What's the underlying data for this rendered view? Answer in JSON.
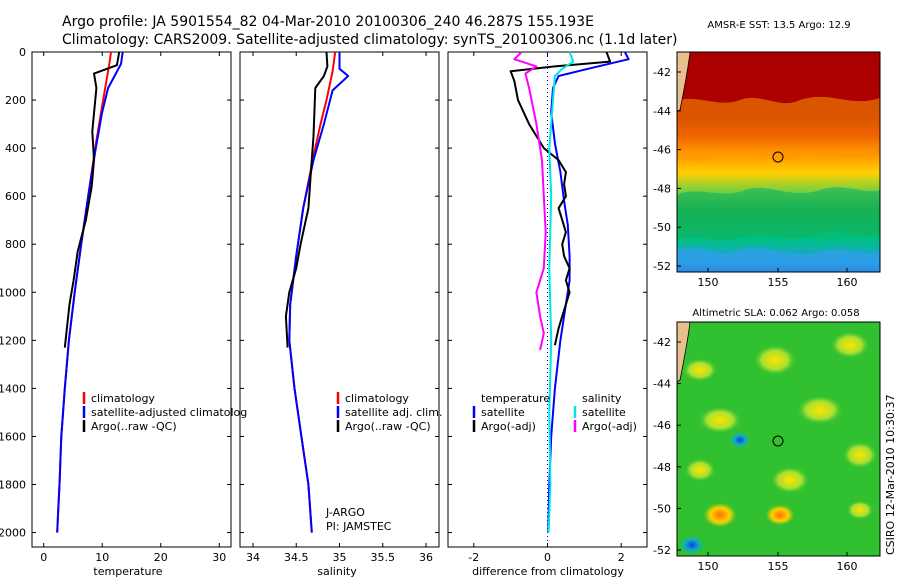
{
  "header": {
    "line1": "Argo profile: JA 5901554_82 04-Mar-2010 20100306_240 46.287S 155.193E",
    "line2": "Climatology: CARS2009. Satellite-adjusted climatology: synTS_20100306.nc (1.1d later)"
  },
  "colors": {
    "climatology": "#ff0000",
    "satellite": "#0000ff",
    "argo": "#000000",
    "argo_adj_sal": "#ff00ff",
    "sat_sal": "#00e5e5"
  },
  "depth_ticks": [
    0,
    200,
    400,
    600,
    800,
    1000,
    1200,
    1400,
    1600,
    1800,
    2000
  ],
  "panels": {
    "temperature": {
      "xlabel": "temperature",
      "xticks": [
        0,
        10,
        20,
        30
      ],
      "legend": [
        "climatology",
        "satellite-adjusted climatolog",
        "Argo(..raw -QC)"
      ]
    },
    "salinity": {
      "xlabel": "salinity",
      "xticks": [
        "34",
        "34.5",
        "35",
        "35.5",
        "36"
      ],
      "legend": [
        "climatology",
        "satellite adj. clim.",
        "Argo(..raw -QC)"
      ],
      "annotation": [
        "J-ARGO",
        "PI: JAMSTEC"
      ]
    },
    "difference": {
      "xlabel": "difference from climatology",
      "xticks": [
        "-2",
        "0",
        "2"
      ],
      "legend_left_title": "temperature",
      "legend_left": [
        "satellite",
        "Argo(-adj)"
      ],
      "legend_right_title": "salinity",
      "legend_right": [
        "satellite",
        "Argo(-adj)"
      ]
    }
  },
  "maps": {
    "sst": {
      "title": "AMSR-E SST: 13.5 Argo: 12.9",
      "yticks": [
        "-42",
        "-44",
        "-46",
        "-48",
        "-50",
        "-52"
      ],
      "xticks": [
        "150",
        "155",
        "160"
      ]
    },
    "sla": {
      "title": "Altimetric SLA: 0.062 Argo: 0.058",
      "yticks": [
        "-42",
        "-44",
        "-46",
        "-48",
        "-50",
        "-52"
      ],
      "xticks": [
        "150",
        "155",
        "160"
      ]
    }
  },
  "footer_vertical": "CSIRO 12-Mar-2010 10:30:37",
  "chart_data": [
    {
      "type": "line",
      "name": "temperature",
      "xlabel": "temperature",
      "ylabel": "",
      "xlim": [
        -2,
        32
      ],
      "ylim": [
        2060,
        0
      ],
      "series": [
        {
          "name": "climatology",
          "x": [
            11.5,
            11.2,
            10.5,
            9.8,
            8.8,
            7.6,
            6.4,
            5.3,
            4.3,
            3.6,
            3.0,
            2.7,
            2.5,
            2.3
          ],
          "y": [
            0,
            50,
            150,
            250,
            400,
            600,
            800,
            1000,
            1200,
            1400,
            1600,
            1800,
            1900,
            2000
          ]
        },
        {
          "name": "satellite-adjusted climatology",
          "x": [
            13.5,
            13.2,
            11.0,
            10.0,
            8.9,
            7.6,
            6.4,
            5.3,
            4.3,
            3.6,
            3.0,
            2.7,
            2.5,
            2.3
          ],
          "y": [
            0,
            50,
            150,
            250,
            400,
            600,
            800,
            1000,
            1200,
            1400,
            1600,
            1800,
            1900,
            2000
          ]
        },
        {
          "name": "Argo(..raw -QC)",
          "x": [
            12.9,
            12.5,
            8.6,
            9.0,
            8.3,
            8.6,
            8.2,
            7.2,
            5.8,
            5.1,
            4.4,
            3.6
          ],
          "y": [
            0,
            55,
            90,
            150,
            330,
            450,
            560,
            700,
            830,
            950,
            1050,
            1230
          ]
        }
      ]
    },
    {
      "type": "line",
      "name": "salinity",
      "xlabel": "salinity",
      "ylabel": "",
      "xlim": [
        33.85,
        36.15
      ],
      "ylim": [
        2060,
        0
      ],
      "series": [
        {
          "name": "climatology",
          "x": [
            34.95,
            34.92,
            34.85,
            34.78,
            34.69,
            34.58,
            34.5,
            34.43,
            34.42,
            34.48,
            34.56,
            34.64,
            34.68
          ],
          "y": [
            0,
            80,
            200,
            300,
            450,
            650,
            850,
            1050,
            1200,
            1400,
            1600,
            1800,
            2000
          ]
        },
        {
          "name": "satellite adj. clim.",
          "x": [
            35.0,
            35.0,
            35.1,
            34.92,
            34.82,
            34.7,
            34.58,
            34.5,
            34.43,
            34.42,
            34.48,
            34.56,
            34.64,
            34.68
          ],
          "y": [
            0,
            70,
            100,
            160,
            300,
            450,
            650,
            850,
            1050,
            1200,
            1400,
            1600,
            1800,
            2000
          ]
        },
        {
          "name": "Argo(..raw -QC)",
          "x": [
            34.85,
            34.86,
            34.82,
            34.72,
            34.7,
            34.67,
            34.64,
            34.55,
            34.5,
            34.42,
            34.38,
            34.4
          ],
          "y": [
            0,
            60,
            100,
            150,
            350,
            500,
            650,
            800,
            900,
            1000,
            1100,
            1230
          ]
        }
      ]
    },
    {
      "type": "line",
      "name": "difference from climatology",
      "xlabel": "difference from climatology",
      "ylabel": "",
      "xlim": [
        -2.7,
        2.7
      ],
      "ylim": [
        2060,
        0
      ],
      "series": [
        {
          "name": "temperature satellite",
          "x": [
            2.1,
            2.2,
            1.1,
            0.3,
            0.15,
            0.1,
            0.2,
            0.35,
            0.45,
            0.55,
            0.6,
            0.6,
            0.5,
            0.35,
            0.2,
            0.1,
            0.05,
            0.02
          ],
          "y": [
            0,
            30,
            70,
            100,
            150,
            250,
            380,
            500,
            620,
            720,
            850,
            950,
            1050,
            1200,
            1400,
            1600,
            1800,
            2000
          ]
        },
        {
          "name": "temperature Argo(-adj)",
          "x": [
            1.6,
            1.7,
            0.2,
            -1.0,
            -0.9,
            -0.8,
            -0.5,
            -0.1,
            0.3,
            0.5,
            0.45,
            0.5,
            0.3,
            0.5,
            0.4,
            0.45,
            0.6,
            0.5,
            0.6,
            0.4,
            0.3,
            0.2
          ],
          "y": [
            0,
            40,
            60,
            80,
            120,
            200,
            300,
            400,
            450,
            500,
            550,
            600,
            650,
            750,
            800,
            850,
            900,
            950,
            1000,
            1100,
            1150,
            1220
          ]
        },
        {
          "name": "salinity satellite",
          "x": [
            0.6,
            0.7,
            0.4,
            0.2,
            0.15,
            0.05,
            0.1,
            0.05,
            0.1,
            0.05,
            0.08,
            0.03
          ],
          "y": [
            0,
            40,
            70,
            100,
            200,
            400,
            600,
            900,
            1200,
            1500,
            1800,
            2000
          ]
        },
        {
          "name": "salinity Argo(-adj)",
          "x": [
            -0.7,
            -0.9,
            -0.3,
            -0.6,
            -0.5,
            -0.3,
            -0.15,
            -0.1,
            -0.05,
            -0.1,
            -0.3,
            -0.2,
            -0.1,
            -0.2
          ],
          "y": [
            0,
            30,
            60,
            90,
            150,
            300,
            450,
            600,
            750,
            900,
            1000,
            1100,
            1170,
            1240
          ]
        }
      ]
    }
  ]
}
